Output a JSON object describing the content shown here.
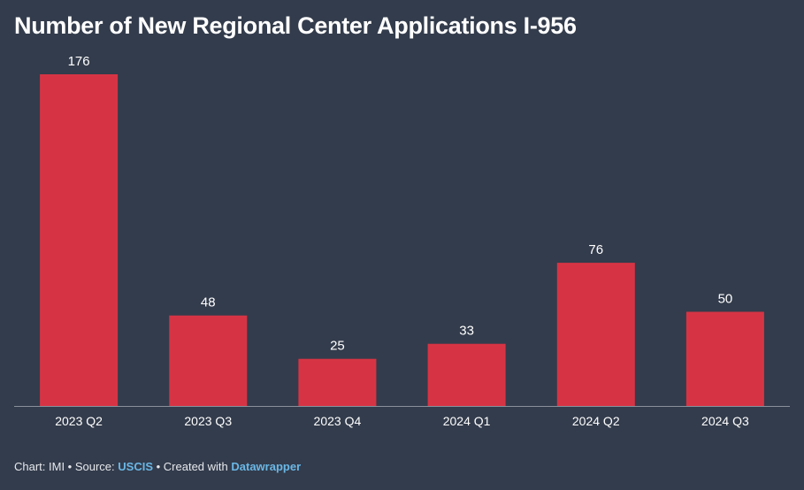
{
  "title": "Number of New Regional Center Applications I-956",
  "footer": {
    "chart_prefix": "Chart: IMI • Source: ",
    "source": "USCIS",
    "created_prefix": " • Created with ",
    "tool": "Datawrapper"
  },
  "colors": {
    "background": "#333c4c",
    "bar": "#d63444",
    "text": "#ffffff",
    "link": "#6ab7e6",
    "axis": "#8a919c"
  },
  "chart_data": {
    "type": "bar",
    "title": "Number of New Regional Center Applications I-956",
    "categories": [
      "2023 Q2",
      "2023 Q3",
      "2023 Q4",
      "2024 Q1",
      "2024 Q2",
      "2024 Q3"
    ],
    "values": [
      176,
      48,
      25,
      33,
      76,
      50
    ],
    "ylim": [
      0,
      176
    ],
    "grid": false,
    "legend": "none",
    "data_labels": true
  }
}
